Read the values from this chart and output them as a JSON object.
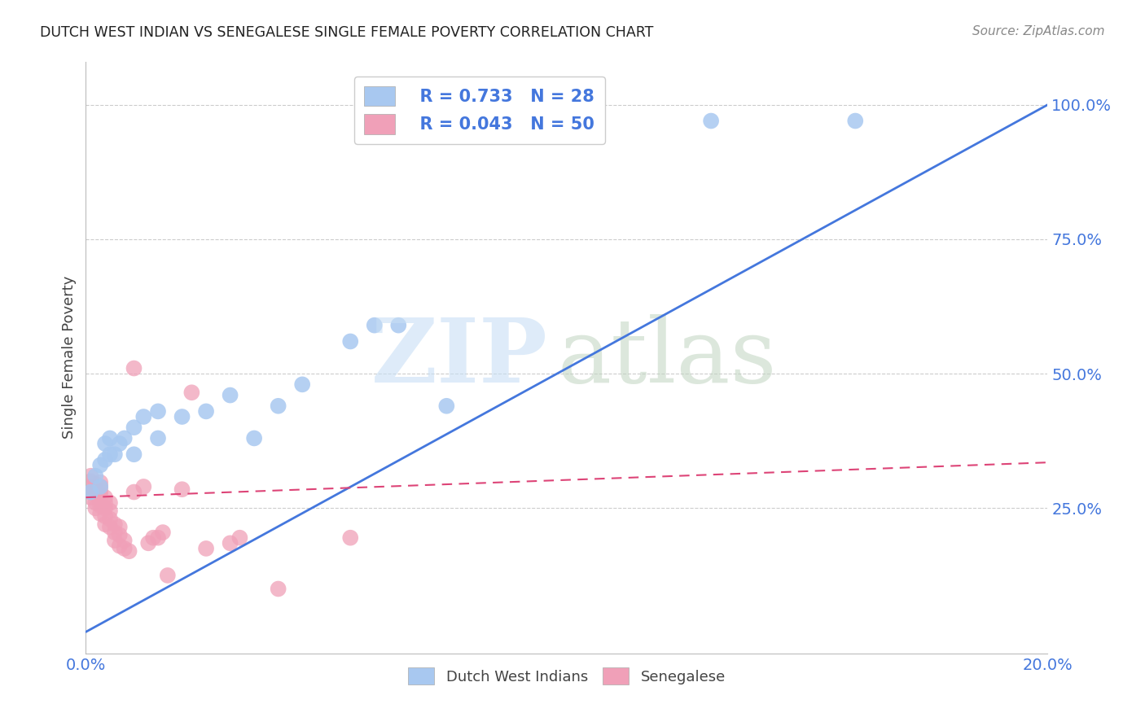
{
  "title": "DUTCH WEST INDIAN VS SENEGALESE SINGLE FEMALE POVERTY CORRELATION CHART",
  "source": "Source: ZipAtlas.com",
  "ylabel": "Single Female Poverty",
  "xlim": [
    0.0,
    0.2
  ],
  "ylim": [
    -0.02,
    1.08
  ],
  "yticks": [
    0.25,
    0.5,
    0.75,
    1.0
  ],
  "ytick_labels": [
    "25.0%",
    "50.0%",
    "75.0%",
    "100.0%"
  ],
  "legend_blue_r": "R = 0.733",
  "legend_blue_n": "N = 28",
  "legend_pink_r": "R = 0.043",
  "legend_pink_n": "N = 50",
  "blue_color": "#a8c8f0",
  "pink_color": "#f0a0b8",
  "blue_line_color": "#4477dd",
  "pink_line_color": "#dd4477",
  "blue_scatter_x": [
    0.001,
    0.002,
    0.003,
    0.003,
    0.004,
    0.004,
    0.005,
    0.005,
    0.006,
    0.007,
    0.008,
    0.01,
    0.01,
    0.012,
    0.015,
    0.015,
    0.02,
    0.025,
    0.03,
    0.035,
    0.04,
    0.045,
    0.055,
    0.06,
    0.065,
    0.075,
    0.13,
    0.16
  ],
  "blue_scatter_y": [
    0.28,
    0.31,
    0.29,
    0.33,
    0.34,
    0.37,
    0.35,
    0.38,
    0.35,
    0.37,
    0.38,
    0.35,
    0.4,
    0.42,
    0.38,
    0.43,
    0.42,
    0.43,
    0.46,
    0.38,
    0.44,
    0.48,
    0.56,
    0.59,
    0.59,
    0.44,
    0.97,
    0.97
  ],
  "pink_scatter_x": [
    0.001,
    0.001,
    0.001,
    0.001,
    0.001,
    0.002,
    0.002,
    0.002,
    0.002,
    0.002,
    0.003,
    0.003,
    0.003,
    0.003,
    0.003,
    0.003,
    0.003,
    0.004,
    0.004,
    0.004,
    0.004,
    0.004,
    0.005,
    0.005,
    0.005,
    0.005,
    0.006,
    0.006,
    0.006,
    0.007,
    0.007,
    0.007,
    0.008,
    0.008,
    0.009,
    0.01,
    0.01,
    0.012,
    0.013,
    0.014,
    0.015,
    0.016,
    0.017,
    0.02,
    0.022,
    0.025,
    0.03,
    0.032,
    0.04,
    0.055
  ],
  "pink_scatter_y": [
    0.27,
    0.28,
    0.29,
    0.3,
    0.31,
    0.25,
    0.26,
    0.275,
    0.285,
    0.295,
    0.24,
    0.255,
    0.265,
    0.275,
    0.282,
    0.29,
    0.298,
    0.22,
    0.235,
    0.25,
    0.26,
    0.27,
    0.215,
    0.23,
    0.245,
    0.26,
    0.19,
    0.205,
    0.22,
    0.18,
    0.2,
    0.215,
    0.175,
    0.19,
    0.17,
    0.28,
    0.51,
    0.29,
    0.185,
    0.195,
    0.195,
    0.205,
    0.125,
    0.285,
    0.465,
    0.175,
    0.185,
    0.195,
    0.1,
    0.195
  ],
  "blue_line_x0": 0.0,
  "blue_line_y0": 0.02,
  "blue_line_x1": 0.2,
  "blue_line_y1": 1.0,
  "pink_line_x0": 0.0,
  "pink_line_y0": 0.27,
  "pink_line_x1": 0.2,
  "pink_line_y1": 0.335
}
